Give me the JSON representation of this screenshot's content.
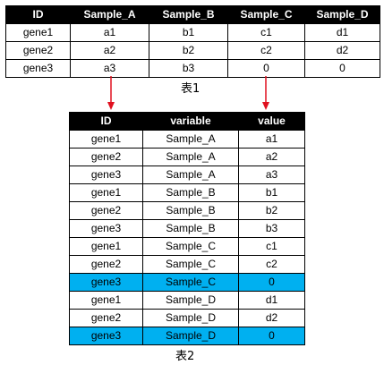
{
  "table1": {
    "headers": [
      "ID",
      "Sample_A",
      "Sample_B",
      "Sample_C",
      "Sample_D"
    ],
    "rows": [
      [
        "gene1",
        "a1",
        "b1",
        "c1",
        "d1"
      ],
      [
        "gene2",
        "a2",
        "b2",
        "c2",
        "d2"
      ],
      [
        "gene3",
        "a3",
        "b3",
        "0",
        "0"
      ]
    ],
    "caption": "表1"
  },
  "table2": {
    "headers": [
      "ID",
      "variable",
      "value"
    ],
    "rows": [
      [
        "gene1",
        "Sample_A",
        "a1"
      ],
      [
        "gene2",
        "Sample_A",
        "a2"
      ],
      [
        "gene3",
        "Sample_A",
        "a3"
      ],
      [
        "gene1",
        "Sample_B",
        "b1"
      ],
      [
        "gene2",
        "Sample_B",
        "b2"
      ],
      [
        "gene3",
        "Sample_B",
        "b3"
      ],
      [
        "gene1",
        "Sample_C",
        "c1"
      ],
      [
        "gene2",
        "Sample_C",
        "c2"
      ],
      [
        "gene3",
        "Sample_C",
        "0"
      ],
      [
        "gene1",
        "Sample_D",
        "d1"
      ],
      [
        "gene2",
        "Sample_D",
        "d2"
      ],
      [
        "gene3",
        "Sample_D",
        "0"
      ]
    ],
    "highlighted_rows": [
      8,
      11
    ],
    "highlight_color": "#00b0f0",
    "caption": "表2"
  },
  "arrow_color": "#e0101f"
}
